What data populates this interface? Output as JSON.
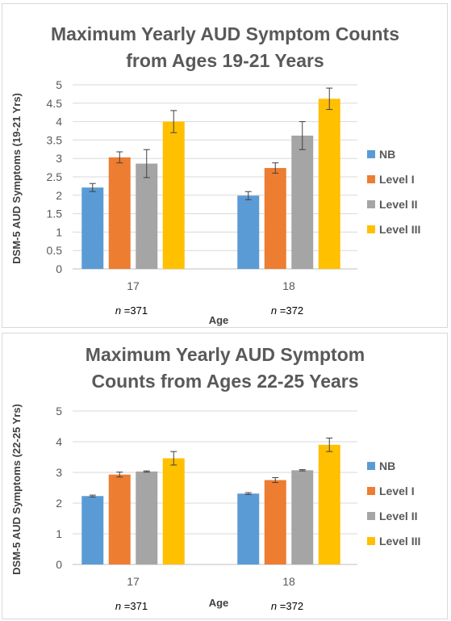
{
  "chart_data": [
    {
      "type": "bar",
      "title_lines": [
        "Maximum Yearly AUD Symptom Counts",
        "from Ages 19-21 Years"
      ],
      "xlabel": "Age",
      "ylabel": "DSM-5 AUD Symptoms (19-21 Yrs)",
      "ylim": [
        0,
        5
      ],
      "yticks": [
        "0",
        "0.5",
        "1",
        "1.5",
        "2",
        "2.5",
        "3",
        "3.5",
        "4",
        "4.5",
        "5"
      ],
      "categories": [
        "17",
        "18"
      ],
      "n_labels": [
        {
          "italic": "n",
          "rest": " =371"
        },
        {
          "italic": "n",
          "rest": " =372"
        }
      ],
      "series": [
        {
          "name": "NB",
          "color": "#5b9bd5",
          "values": [
            2.21,
            1.99
          ],
          "errors": [
            0.11,
            0.11
          ]
        },
        {
          "name": "Level I",
          "color": "#ed7d31",
          "values": [
            3.03,
            2.74
          ],
          "errors": [
            0.15,
            0.14
          ]
        },
        {
          "name": "Level II",
          "color": "#a5a5a5",
          "values": [
            2.86,
            3.62
          ],
          "errors": [
            0.38,
            0.38
          ]
        },
        {
          "name": "Level III",
          "color": "#ffc000",
          "values": [
            4.0,
            4.62
          ],
          "errors": [
            0.3,
            0.29
          ]
        }
      ],
      "legend_position": "right",
      "grid": true
    },
    {
      "type": "bar",
      "title_lines": [
        "Maximum Yearly AUD Symptom",
        "Counts from Ages 22-25 Years"
      ],
      "xlabel": "Age",
      "ylabel": "DSM-5 AUD Symptoms (22-25 Yrs)",
      "ylim": [
        0,
        5
      ],
      "yticks": [
        "0",
        "1",
        "2",
        "3",
        "4",
        "5"
      ],
      "categories": [
        "17",
        "18"
      ],
      "n_labels": [
        {
          "italic": "n",
          "rest": " =371"
        },
        {
          "italic": "n",
          "rest": " =372"
        }
      ],
      "series": [
        {
          "name": "NB",
          "color": "#5b9bd5",
          "values": [
            2.23,
            2.31
          ],
          "errors": [
            0.03,
            0.03
          ]
        },
        {
          "name": "Level I",
          "color": "#ed7d31",
          "values": [
            2.93,
            2.75
          ],
          "errors": [
            0.08,
            0.08
          ]
        },
        {
          "name": "Level II",
          "color": "#a5a5a5",
          "values": [
            3.03,
            3.07
          ],
          "errors": [
            0.02,
            0.02
          ]
        },
        {
          "name": "Level III",
          "color": "#ffc000",
          "values": [
            3.46,
            3.9
          ],
          "errors": [
            0.22,
            0.22
          ]
        }
      ],
      "legend_position": "right",
      "grid": true
    }
  ]
}
